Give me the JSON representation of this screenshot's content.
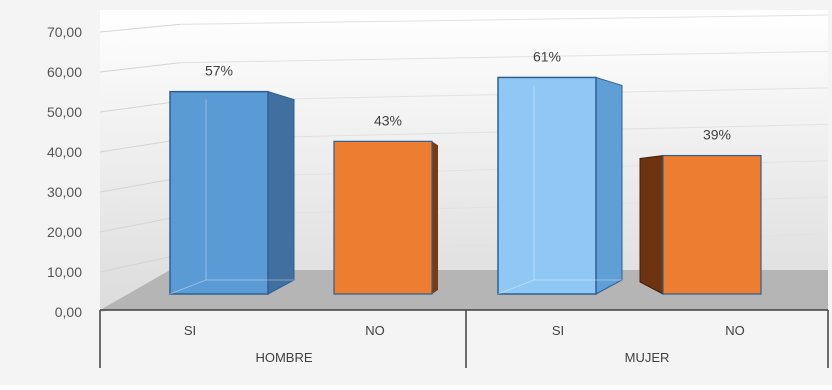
{
  "chart_data": {
    "type": "bar",
    "title": "",
    "groups": [
      {
        "label": "HOMBRE",
        "categories": [
          "SI",
          "NO"
        ],
        "values": [
          57,
          43
        ],
        "labels": [
          "57%",
          "43%"
        ]
      },
      {
        "label": "MUJER",
        "categories": [
          "SI",
          "NO"
        ],
        "values": [
          61,
          39
        ],
        "labels": [
          "61%",
          "39%"
        ]
      }
    ],
    "ylim": [
      0,
      70
    ],
    "yticks": [
      "0,00",
      "10,00",
      "20,00",
      "30,00",
      "40,00",
      "50,00",
      "60,00",
      "70,00"
    ],
    "grid": true,
    "legend": "none",
    "colors": {
      "si": "#5b9bd5",
      "si_light": "#8fc8f5",
      "no": "#ed7d31",
      "no_side": "#6e3411",
      "floor": "#b0b0b0",
      "background": "#e7e7e7"
    }
  }
}
